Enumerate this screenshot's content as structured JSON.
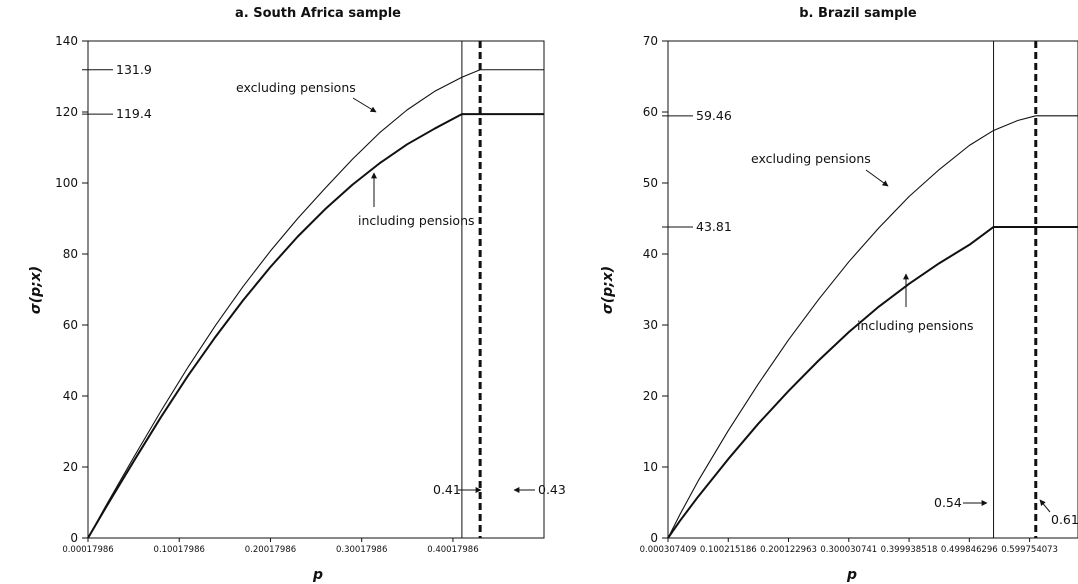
{
  "chart_data": [
    {
      "type": "line",
      "title": "a. South Africa sample",
      "xlabel": "p",
      "ylabel": "σ(p;x)",
      "xlim": [
        0.00017986,
        0.5
      ],
      "ylim": [
        0,
        140
      ],
      "xticks": [
        0.00017986,
        0.10017986,
        0.20017986,
        0.30017986,
        0.40017986
      ],
      "xtick_labels": [
        "0.00017986",
        "0.10017986",
        "0.20017986",
        "0.30017986",
        "0.40017986"
      ],
      "yticks": [
        0,
        20,
        40,
        60,
        80,
        100,
        120,
        140
      ],
      "ytick_labels": [
        "0",
        "20",
        "40",
        "60",
        "80",
        "100",
        "120",
        "140"
      ],
      "series": [
        {
          "name": "excluding pensions",
          "x": [
            0.00018,
            0.02,
            0.05,
            0.08,
            0.11,
            0.14,
            0.17,
            0.2,
            0.23,
            0.26,
            0.29,
            0.32,
            0.35,
            0.38,
            0.41,
            0.43,
            0.5
          ],
          "y": [
            0,
            9.2,
            22.6,
            35.7,
            48.2,
            59.9,
            70.8,
            80.8,
            90.0,
            98.5,
            106.7,
            114.2,
            120.6,
            125.8,
            129.8,
            131.9,
            131.9
          ]
        },
        {
          "name": "including pensions",
          "x": [
            0.00018,
            0.02,
            0.05,
            0.08,
            0.11,
            0.14,
            0.17,
            0.2,
            0.23,
            0.26,
            0.29,
            0.32,
            0.35,
            0.38,
            0.41,
            0.5
          ],
          "y": [
            0,
            8.7,
            21.5,
            34.0,
            45.8,
            56.7,
            66.9,
            76.3,
            84.9,
            92.6,
            99.5,
            105.6,
            110.9,
            115.3,
            119.4,
            119.4
          ]
        }
      ],
      "hlines": [
        {
          "y": 131.9,
          "label": "131.9"
        },
        {
          "y": 119.4,
          "label": "119.4"
        }
      ],
      "vlines": [
        {
          "x": 0.41,
          "style": "solid",
          "label": "0.41"
        },
        {
          "x": 0.43,
          "style": "dashed",
          "label": "0.43"
        }
      ],
      "annotations": [
        {
          "text": "excluding pensions",
          "points_to": "excluding pensions"
        },
        {
          "text": "including pensions",
          "points_to": "including pensions"
        }
      ]
    },
    {
      "type": "line",
      "title": "b. Brazil sample",
      "xlabel": "p",
      "ylabel": "σ(p;x)",
      "xlim": [
        0.000307409,
        0.68
      ],
      "ylim": [
        0,
        70
      ],
      "xticks": [
        0.000307409,
        0.100215186,
        0.200122963,
        0.300030741,
        0.399938518,
        0.499846296,
        0.599754073
      ],
      "xtick_labels": [
        "0.000307409",
        "0.100215186",
        "0.200122963",
        "0.300030741",
        "0.399938518",
        "0.499846296",
        "0.599754073"
      ],
      "yticks": [
        0,
        10,
        20,
        30,
        40,
        50,
        60,
        70
      ],
      "ytick_labels": [
        "0",
        "10",
        "20",
        "30",
        "40",
        "50",
        "60",
        "70"
      ],
      "series": [
        {
          "name": "excluding pensions",
          "x": [
            0.0003,
            0.02,
            0.05,
            0.1,
            0.15,
            0.2,
            0.25,
            0.3,
            0.35,
            0.4,
            0.45,
            0.5,
            0.54,
            0.58,
            0.61,
            0.68
          ],
          "y": [
            0,
            3.3,
            8.0,
            15.1,
            21.7,
            27.9,
            33.6,
            38.9,
            43.7,
            48.1,
            51.9,
            55.3,
            57.4,
            58.8,
            59.46,
            59.46
          ]
        },
        {
          "name": "including pensions",
          "x": [
            0.0003,
            0.02,
            0.05,
            0.1,
            0.15,
            0.2,
            0.25,
            0.3,
            0.35,
            0.4,
            0.45,
            0.5,
            0.54,
            0.68
          ],
          "y": [
            0,
            2.4,
            5.8,
            11.1,
            16.1,
            20.7,
            25.0,
            29.0,
            32.6,
            35.8,
            38.7,
            41.3,
            43.81,
            43.81
          ]
        }
      ],
      "hlines": [
        {
          "y": 59.46,
          "label": "59.46"
        },
        {
          "y": 43.81,
          "label": "43.81"
        }
      ],
      "vlines": [
        {
          "x": 0.54,
          "style": "solid",
          "label": "0.54"
        },
        {
          "x": 0.61,
          "style": "dashed",
          "label": "0.61"
        }
      ],
      "annotations": [
        {
          "text": "excluding pensions",
          "points_to": "excluding pensions"
        },
        {
          "text": "including pensions",
          "points_to": "including pensions"
        }
      ]
    }
  ]
}
